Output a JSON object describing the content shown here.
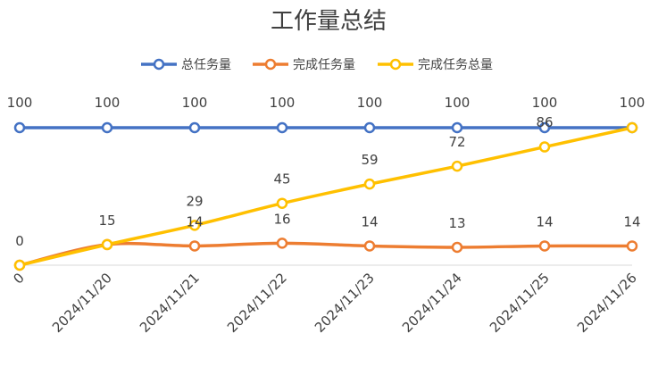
{
  "chart_data": {
    "type": "line",
    "title": "工作量总结",
    "categories": [
      "0",
      "2024/11/20",
      "2024/11/21",
      "2024/11/22",
      "2024/11/23",
      "2024/11/24",
      "2024/11/25",
      "2024/11/26"
    ],
    "ylim": [
      0,
      100
    ],
    "grid": false,
    "legend_position": "top",
    "series": [
      {
        "name": "总任务量",
        "color": "#4472C4",
        "values": [
          100,
          100,
          100,
          100,
          100,
          100,
          100,
          100
        ]
      },
      {
        "name": "完成任务量",
        "color": "#ED7D31",
        "values": [
          0,
          15,
          14,
          16,
          14,
          13,
          14,
          14
        ]
      },
      {
        "name": "完成任务总量",
        "color": "#FFC000",
        "values": [
          0,
          15,
          29,
          45,
          59,
          72,
          86,
          100
        ]
      }
    ]
  }
}
